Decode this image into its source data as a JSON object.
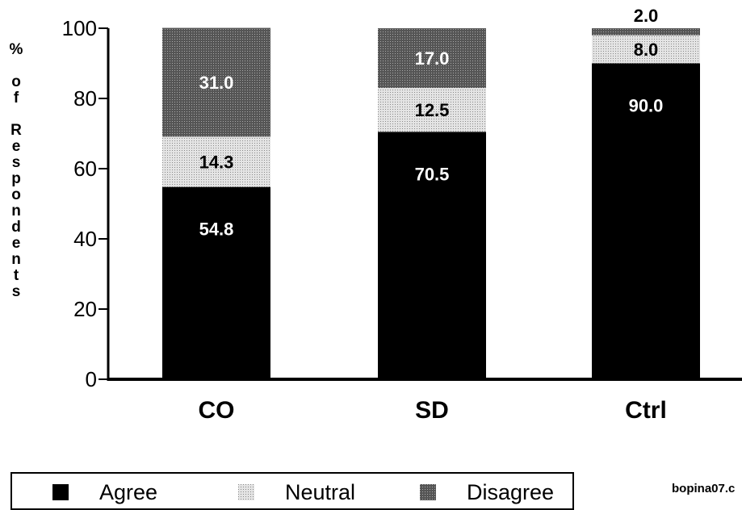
{
  "chart_data": {
    "type": "bar",
    "stacked": true,
    "title": "",
    "xlabel": "",
    "ylabel": "% of Respondents",
    "ylim": [
      0,
      100
    ],
    "yticks": [
      "0",
      "20",
      "40",
      "60",
      "80",
      "100"
    ],
    "categories": [
      "CO",
      "SD",
      "Ctrl"
    ],
    "series": [
      {
        "name": "Agree",
        "values": [
          54.8,
          70.5,
          90.0
        ],
        "labels": [
          "54.8",
          "70.5",
          "90.0"
        ],
        "color": "#000000"
      },
      {
        "name": "Neutral",
        "values": [
          14.3,
          12.5,
          8.0
        ],
        "labels": [
          "14.3",
          "12.5",
          "8.0"
        ],
        "color": "#d4d4d4"
      },
      {
        "name": "Disagree",
        "values": [
          31.0,
          17.0,
          2.0
        ],
        "labels": [
          "31.0",
          "17.0",
          "2.0"
        ],
        "color": "#595959"
      }
    ],
    "legend_position": "bottom-left",
    "grid": false
  },
  "ylabel_chars": [
    "%",
    "",
    "o",
    "f",
    "",
    "R",
    "e",
    "s",
    "p",
    "o",
    "n",
    "d",
    "e",
    "n",
    "t",
    "s"
  ],
  "watermark": "bopina07.c"
}
